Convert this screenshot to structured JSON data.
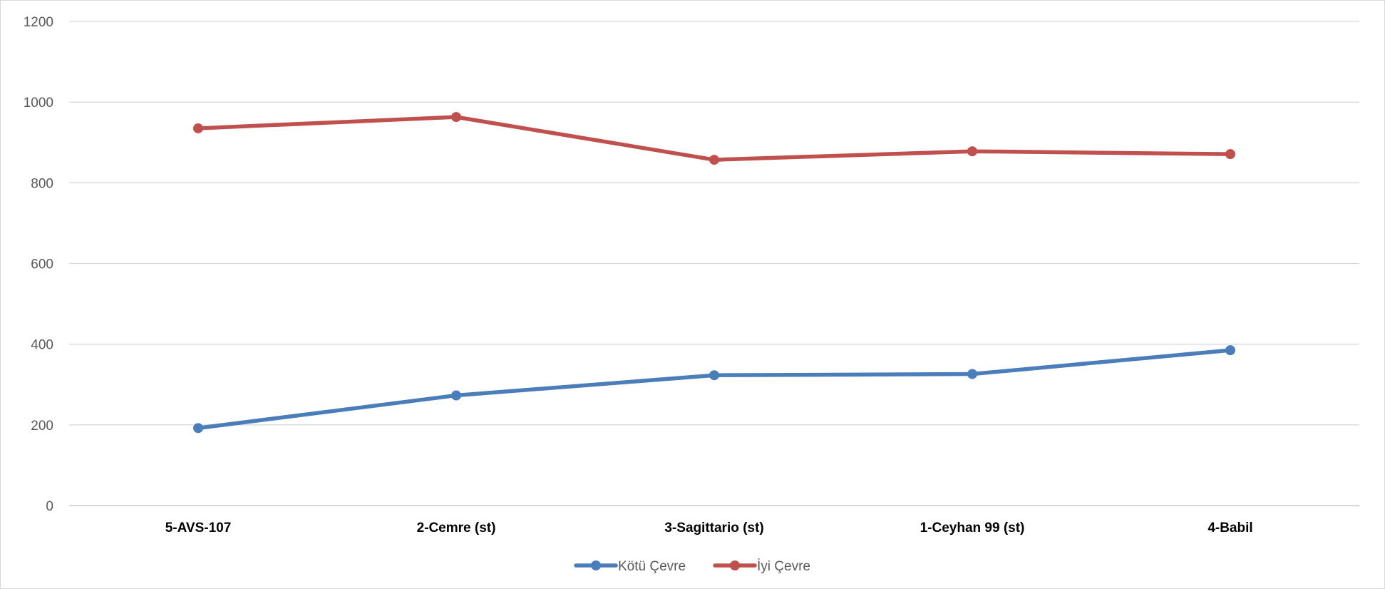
{
  "chart_data": {
    "type": "line",
    "title": "",
    "xlabel": "",
    "ylabel": "",
    "categories": [
      "5-AVS-107",
      "2-Cemre (st)",
      "3-Sagittario (st)",
      "1-Ceyhan 99 (st)",
      "4-Babil"
    ],
    "ylim": [
      0,
      1200
    ],
    "yticks": [
      0,
      200,
      400,
      600,
      800,
      1000,
      1200
    ],
    "grid": true,
    "legend_position": "bottom",
    "series": [
      {
        "name": "Kötü Çevre",
        "color": "#4a7ebb",
        "values": [
          192,
          273,
          323,
          326,
          385
        ]
      },
      {
        "name": "İyi Çevre",
        "color": "#c0504d",
        "values": [
          935,
          963,
          857,
          878,
          871
        ]
      }
    ]
  }
}
